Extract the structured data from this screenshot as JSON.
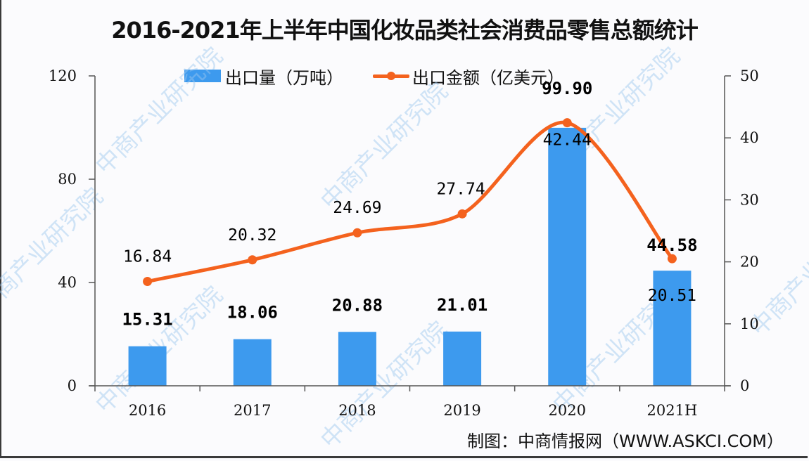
{
  "title": "2016-2021年上半年中国化妆品类社会消费品零售总额统计",
  "legend": {
    "bar_label": "出口量（万吨）",
    "line_label": "出口金额（亿美元）"
  },
  "colors": {
    "bar": "#3d9aee",
    "line": "#f4621e",
    "axis": "#555555"
  },
  "footer": "制图：中商情报网（WWW.ASKCI.COM）",
  "watermark": "中商产业研究院",
  "chart_data": {
    "type": "bar+line",
    "title": "2016-2021年上半年中国化妆品类社会消费品零售总额统计",
    "categories": [
      "2016",
      "2017",
      "2018",
      "2019",
      "2020",
      "2021H"
    ],
    "series": [
      {
        "name": "出口量（万吨）",
        "type": "bar",
        "axis": "left",
        "values": [
          15.31,
          18.06,
          20.88,
          21.01,
          99.9,
          44.58
        ],
        "labels": [
          "15.31",
          "18.06",
          "20.88",
          "21.01",
          "99.90",
          "44.58"
        ]
      },
      {
        "name": "出口金额（亿美元）",
        "type": "line",
        "axis": "right",
        "smooth": true,
        "values": [
          16.84,
          20.32,
          24.69,
          27.74,
          42.44,
          20.51
        ],
        "labels": [
          "16.84",
          "20.32",
          "24.69",
          "27.74",
          "42.44",
          "20.51"
        ]
      }
    ],
    "left_axis": {
      "ylim": [
        0,
        120
      ],
      "ticks": [
        "0",
        "40",
        "80",
        "120"
      ]
    },
    "right_axis": {
      "ylim": [
        0,
        50
      ],
      "ticks": [
        "0",
        "10",
        "20",
        "30",
        "40",
        "50"
      ]
    },
    "xlabel": "",
    "ylabel": "",
    "legend_position": "top",
    "grid": false
  }
}
